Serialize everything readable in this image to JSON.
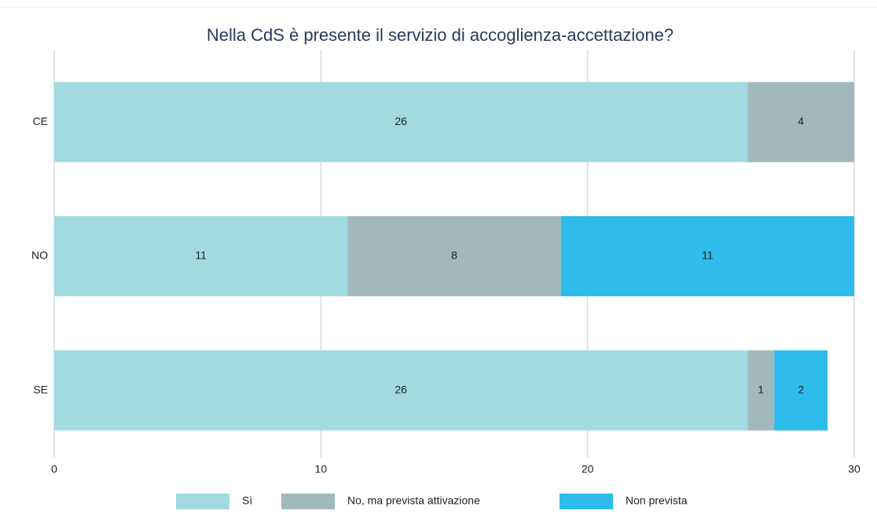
{
  "chart_data": {
    "type": "bar",
    "orientation": "horizontal",
    "stacked": true,
    "title": "Nella CdS è presente il servizio di accoglienza-accettazione?",
    "categories": [
      "CE",
      "NO",
      "SE"
    ],
    "series": [
      {
        "name": "Sì",
        "color": "#a2dae2",
        "values": [
          26,
          11,
          26
        ]
      },
      {
        "name": "No, ma prevista attivazione",
        "color": "#a2b9bc",
        "values": [
          4,
          8,
          1
        ]
      },
      {
        "name": "Non prevista",
        "color": "#2ebcec",
        "values": [
          null,
          11,
          2
        ]
      }
    ],
    "xlim": [
      0,
      30
    ],
    "xticks": [
      0,
      10,
      20,
      30
    ],
    "grid": true,
    "legend": "bottom"
  }
}
